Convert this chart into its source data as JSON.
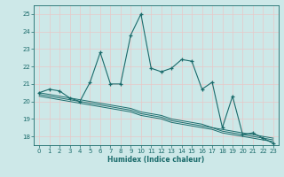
{
  "xlabel": "Humidex (Indice chaleur)",
  "xlim": [
    -0.5,
    23.5
  ],
  "ylim": [
    17.5,
    25.5
  ],
  "yticks": [
    18,
    19,
    20,
    21,
    22,
    23,
    24,
    25
  ],
  "xticks": [
    0,
    1,
    2,
    3,
    4,
    5,
    6,
    7,
    8,
    9,
    10,
    11,
    12,
    13,
    14,
    15,
    16,
    17,
    18,
    19,
    20,
    21,
    22,
    23
  ],
  "bg_color": "#cde8e8",
  "line_color": "#1a6b6b",
  "grid_color": "#e8c8c8",
  "main_line_x": [
    0,
    1,
    2,
    3,
    4,
    5,
    6,
    7,
    8,
    9,
    10,
    11,
    12,
    13,
    14,
    15,
    16,
    17,
    18,
    19,
    20,
    21,
    22,
    23
  ],
  "main_line_y": [
    20.5,
    20.7,
    20.6,
    20.2,
    20.0,
    21.1,
    22.8,
    21.0,
    21.0,
    23.8,
    25.0,
    21.9,
    21.7,
    21.9,
    22.4,
    22.3,
    20.7,
    21.1,
    18.5,
    20.3,
    18.1,
    18.2,
    17.9,
    17.6
  ],
  "band_lines": [
    [
      20.5,
      20.4,
      20.3,
      20.2,
      20.1,
      20.0,
      19.9,
      19.8,
      19.7,
      19.6,
      19.4,
      19.3,
      19.2,
      19.0,
      18.9,
      18.8,
      18.7,
      18.5,
      18.4,
      18.3,
      18.2,
      18.1,
      18.0,
      17.9
    ],
    [
      20.4,
      20.3,
      20.2,
      20.1,
      20.0,
      19.9,
      19.8,
      19.7,
      19.6,
      19.5,
      19.3,
      19.2,
      19.1,
      18.9,
      18.8,
      18.7,
      18.6,
      18.5,
      18.3,
      18.2,
      18.1,
      18.0,
      17.9,
      17.8
    ],
    [
      20.3,
      20.2,
      20.1,
      20.0,
      19.9,
      19.8,
      19.7,
      19.6,
      19.5,
      19.4,
      19.2,
      19.1,
      19.0,
      18.8,
      18.7,
      18.6,
      18.5,
      18.4,
      18.2,
      18.1,
      18.0,
      17.9,
      17.8,
      17.7
    ]
  ]
}
